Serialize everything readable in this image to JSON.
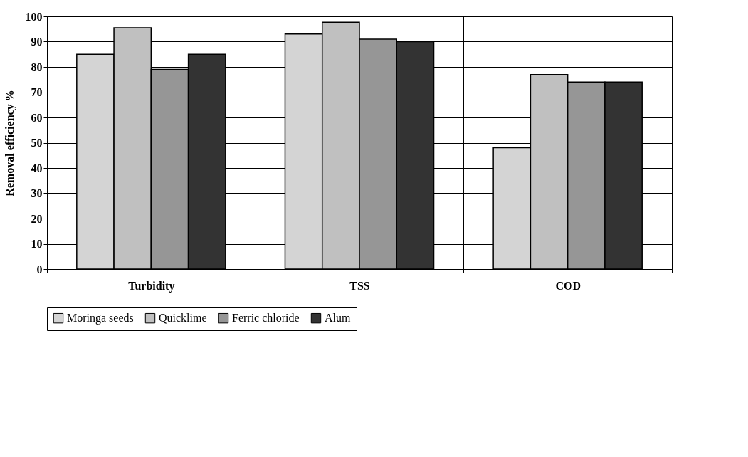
{
  "chart_data": {
    "type": "bar",
    "ylabel": "Removal efficiency %",
    "categories": [
      "Turbidity",
      "TSS",
      "COD"
    ],
    "series": [
      {
        "name": "Moringa seeds",
        "color": "#d4d4d4",
        "values": [
          85,
          93,
          48
        ]
      },
      {
        "name": "Quicklime",
        "color": "#c0c0c0",
        "values": [
          95.5,
          97.7,
          77
        ]
      },
      {
        "name": "Ferric chloride",
        "color": "#969696",
        "values": [
          79,
          91,
          74
        ]
      },
      {
        "name": "Alum",
        "color": "#333333",
        "values": [
          85,
          90,
          74
        ]
      }
    ],
    "ylim": [
      0,
      100
    ],
    "yticks": [
      0,
      10,
      20,
      30,
      40,
      50,
      60,
      70,
      80,
      90,
      100
    ],
    "grid": true,
    "legend": "bottom"
  }
}
